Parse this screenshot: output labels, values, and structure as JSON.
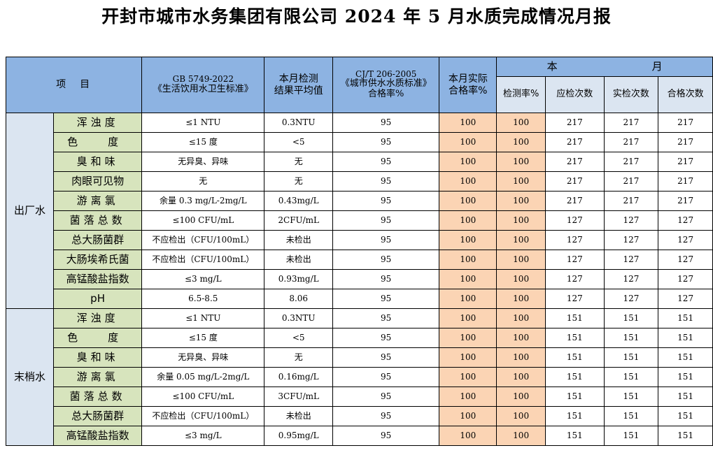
{
  "title": "开封市城市水务集团有限公司 2024 年 5 月水质完成情况月报",
  "header": {
    "item": "项　目",
    "gb": [
      "GB 5749-2022",
      "《生活饮用水卫生标准》"
    ],
    "avg": [
      "本月检测",
      "结果平均值"
    ],
    "cj": [
      "CJ/T 206-2005",
      "《城市供水水质标准》",
      "合格率%"
    ],
    "actual": [
      "本月实际",
      "合格率%"
    ],
    "month_left": "本",
    "month_right": "月",
    "detect_rate": "检测率%",
    "should": "应检次数",
    "actual_count": "实检次数",
    "pass_count": "合格次数"
  },
  "groups": {
    "plant": "出厂水",
    "end": "末梢水"
  },
  "plant_rows": [
    {
      "item": "浑浊度",
      "std": "≤1 NTU",
      "avg": "0.3NTU",
      "cj": "95",
      "actual": "100",
      "detect": "100",
      "should": "217",
      "done": "217",
      "pass": "217"
    },
    {
      "item": "色　度",
      "std": "≤15 度",
      "avg": "<5",
      "cj": "95",
      "actual": "100",
      "detect": "100",
      "should": "217",
      "done": "217",
      "pass": "217"
    },
    {
      "item": "臭和味",
      "std": "无异臭、异味",
      "avg": "无",
      "cj": "95",
      "actual": "100",
      "detect": "100",
      "should": "217",
      "done": "217",
      "pass": "217"
    },
    {
      "item": "肉眼可见物",
      "std": "无",
      "avg": "无",
      "cj": "95",
      "actual": "100",
      "detect": "100",
      "should": "217",
      "done": "217",
      "pass": "217"
    },
    {
      "item": "游离氯",
      "std": "余量 0.3 mg/L-2mg/L",
      "avg": "0.43mg/L",
      "cj": "95",
      "actual": "100",
      "detect": "100",
      "should": "217",
      "done": "217",
      "pass": "217"
    },
    {
      "item": "菌落总数",
      "std": "≤100 CFU/mL",
      "avg": "2CFU/mL",
      "cj": "95",
      "actual": "100",
      "detect": "100",
      "should": "127",
      "done": "127",
      "pass": "127"
    },
    {
      "item": "总大肠菌群",
      "std": "不应检出（CFU/100mL）",
      "avg": "未检出",
      "cj": "95",
      "actual": "100",
      "detect": "100",
      "should": "127",
      "done": "127",
      "pass": "127"
    },
    {
      "item": "大肠埃希氏菌",
      "std": "不应检出（CFU/100mL）",
      "avg": "未检出",
      "cj": "95",
      "actual": "100",
      "detect": "100",
      "should": "127",
      "done": "127",
      "pass": "127"
    },
    {
      "item": "高锰酸盐指数",
      "std": "≤3 mg/L",
      "avg": "0.93mg/L",
      "cj": "95",
      "actual": "100",
      "detect": "100",
      "should": "127",
      "done": "127",
      "pass": "127"
    },
    {
      "item": "pH",
      "std": "6.5-8.5",
      "avg": "8.06",
      "cj": "95",
      "actual": "100",
      "detect": "100",
      "should": "127",
      "done": "127",
      "pass": "127"
    }
  ],
  "end_rows": [
    {
      "item": "浑浊度",
      "std": "≤1 NTU",
      "avg": "0.3NTU",
      "cj": "95",
      "actual": "100",
      "detect": "100",
      "should": "151",
      "done": "151",
      "pass": "151"
    },
    {
      "item": "色　度",
      "std": "≤15 度",
      "avg": "<5",
      "cj": "95",
      "actual": "100",
      "detect": "100",
      "should": "151",
      "done": "151",
      "pass": "151"
    },
    {
      "item": "臭和味",
      "std": "无异臭、异味",
      "avg": "无",
      "cj": "95",
      "actual": "100",
      "detect": "100",
      "should": "151",
      "done": "151",
      "pass": "151"
    },
    {
      "item": "游离氯",
      "std": "余量 0.05 mg/L-2mg/L",
      "avg": "0.16mg/L",
      "cj": "95",
      "actual": "100",
      "detect": "100",
      "should": "151",
      "done": "151",
      "pass": "151"
    },
    {
      "item": "菌落总数",
      "std": "≤100 CFU/mL",
      "avg": "3CFU/mL",
      "cj": "95",
      "actual": "100",
      "detect": "100",
      "should": "151",
      "done": "151",
      "pass": "151"
    },
    {
      "item": "总大肠菌群",
      "std": "不应检出（CFU/100mL）",
      "avg": "未检出",
      "cj": "95",
      "actual": "100",
      "detect": "100",
      "should": "151",
      "done": "151",
      "pass": "151"
    },
    {
      "item": "高锰酸盐指数",
      "std": "≤3 mg/L",
      "avg": "0.95mg/L",
      "cj": "95",
      "actual": "100",
      "detect": "100",
      "should": "151",
      "done": "151",
      "pass": "151"
    }
  ]
}
